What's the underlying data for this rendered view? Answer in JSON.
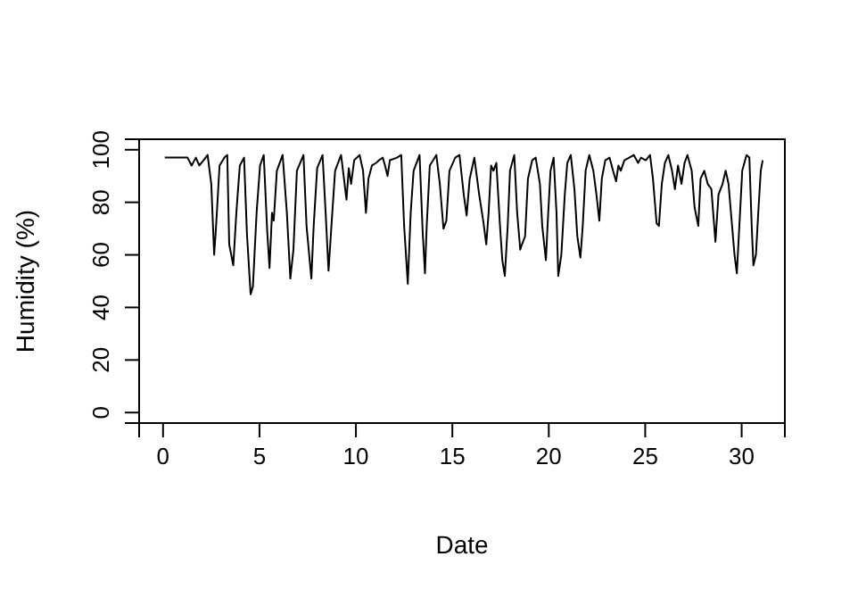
{
  "chart_data": {
    "type": "line",
    "xlabel": "Date",
    "ylabel": "Humidity (%)",
    "color": "#000000",
    "xlim": [
      -1.24,
      32.24
    ],
    "ylim": [
      -4,
      104
    ],
    "xticks": [
      0,
      5,
      10,
      15,
      20,
      25,
      30
    ],
    "yticks": [
      0,
      20,
      40,
      60,
      80,
      100
    ],
    "grid": false,
    "marker": "none",
    "line_style": "solid",
    "x": [
      0.09,
      1.27,
      1.48,
      1.7,
      1.88,
      2.1,
      2.31,
      2.5,
      2.65,
      2.75,
      2.93,
      3.18,
      3.33,
      3.43,
      3.64,
      3.8,
      3.98,
      4.2,
      4.35,
      4.54,
      4.66,
      4.85,
      5.03,
      5.22,
      5.4,
      5.52,
      5.65,
      5.74,
      5.9,
      6.2,
      6.42,
      6.6,
      6.76,
      6.94,
      7.28,
      7.44,
      7.69,
      7.81,
      7.99,
      8.27,
      8.43,
      8.58,
      8.73,
      8.92,
      9.23,
      9.38,
      9.51,
      9.63,
      9.75,
      9.91,
      10.19,
      10.37,
      10.52,
      10.65,
      10.83,
      11.05,
      11.2,
      11.39,
      11.51,
      11.64,
      11.76,
      12.13,
      12.35,
      12.5,
      12.69,
      12.84,
      12.99,
      13.3,
      13.46,
      13.58,
      13.67,
      13.83,
      14.17,
      14.35,
      14.54,
      14.69,
      14.85,
      15.15,
      15.37,
      15.59,
      15.74,
      15.9,
      16.14,
      16.39,
      16.6,
      16.76,
      16.88,
      17.01,
      17.13,
      17.28,
      17.47,
      17.59,
      17.72,
      17.87,
      17.99,
      18.21,
      18.36,
      18.52,
      18.61,
      18.77,
      18.92,
      19.14,
      19.32,
      19.54,
      19.66,
      19.85,
      19.97,
      20.09,
      20.25,
      20.4,
      20.49,
      20.65,
      20.83,
      20.96,
      21.14,
      21.33,
      21.48,
      21.64,
      21.76,
      21.91,
      22.1,
      22.31,
      22.47,
      22.62,
      22.75,
      22.93,
      23.15,
      23.33,
      23.49,
      23.61,
      23.73,
      23.92,
      24.17,
      24.41,
      24.63,
      24.78,
      25.03,
      25.25,
      25.4,
      25.59,
      25.71,
      25.86,
      26.02,
      26.2,
      26.39,
      26.54,
      26.7,
      26.88,
      27.04,
      27.19,
      27.41,
      27.56,
      27.75,
      27.87,
      28.06,
      28.24,
      28.43,
      28.64,
      28.8,
      29.01,
      29.17,
      29.32,
      29.48,
      29.63,
      29.75,
      29.88,
      30.03,
      30.25,
      30.4,
      30.52,
      30.61,
      30.74,
      30.86,
      30.99,
      31.09
    ],
    "values": [
      97,
      97,
      94,
      97,
      94,
      96,
      98,
      87,
      60,
      71,
      94,
      97,
      98,
      64,
      56,
      76,
      94,
      97,
      68,
      45,
      48,
      76,
      94,
      98,
      69,
      55,
      76,
      73,
      92,
      98,
      76,
      51,
      62,
      92,
      98,
      71,
      51,
      71,
      93,
      98,
      76,
      54,
      71,
      92,
      98,
      89,
      81,
      93,
      87,
      96,
      98,
      92,
      76,
      89,
      94,
      95,
      96,
      97,
      94,
      90,
      96,
      97,
      98,
      71,
      49,
      76,
      92,
      98,
      69,
      53,
      71,
      94,
      98,
      87,
      70,
      73,
      92,
      97,
      98,
      83,
      75,
      89,
      97,
      83,
      73,
      64,
      76,
      94,
      92,
      95,
      71,
      58,
      52,
      71,
      92,
      98,
      76,
      62,
      64,
      67,
      89,
      96,
      97,
      87,
      71,
      58,
      76,
      92,
      97,
      76,
      52,
      60,
      83,
      95,
      98,
      85,
      67,
      59,
      71,
      92,
      98,
      92,
      83,
      73,
      89,
      96,
      97,
      92,
      88,
      94,
      92,
      96,
      97,
      98,
      95,
      97,
      96,
      98,
      89,
      72,
      71,
      87,
      95,
      98,
      92,
      85,
      94,
      87,
      95,
      98,
      92,
      78,
      71,
      89,
      92,
      87,
      85,
      65,
      83,
      87,
      92,
      87,
      73,
      60,
      53,
      71,
      92,
      98,
      97,
      71,
      56,
      60,
      76,
      92,
      96
    ]
  }
}
